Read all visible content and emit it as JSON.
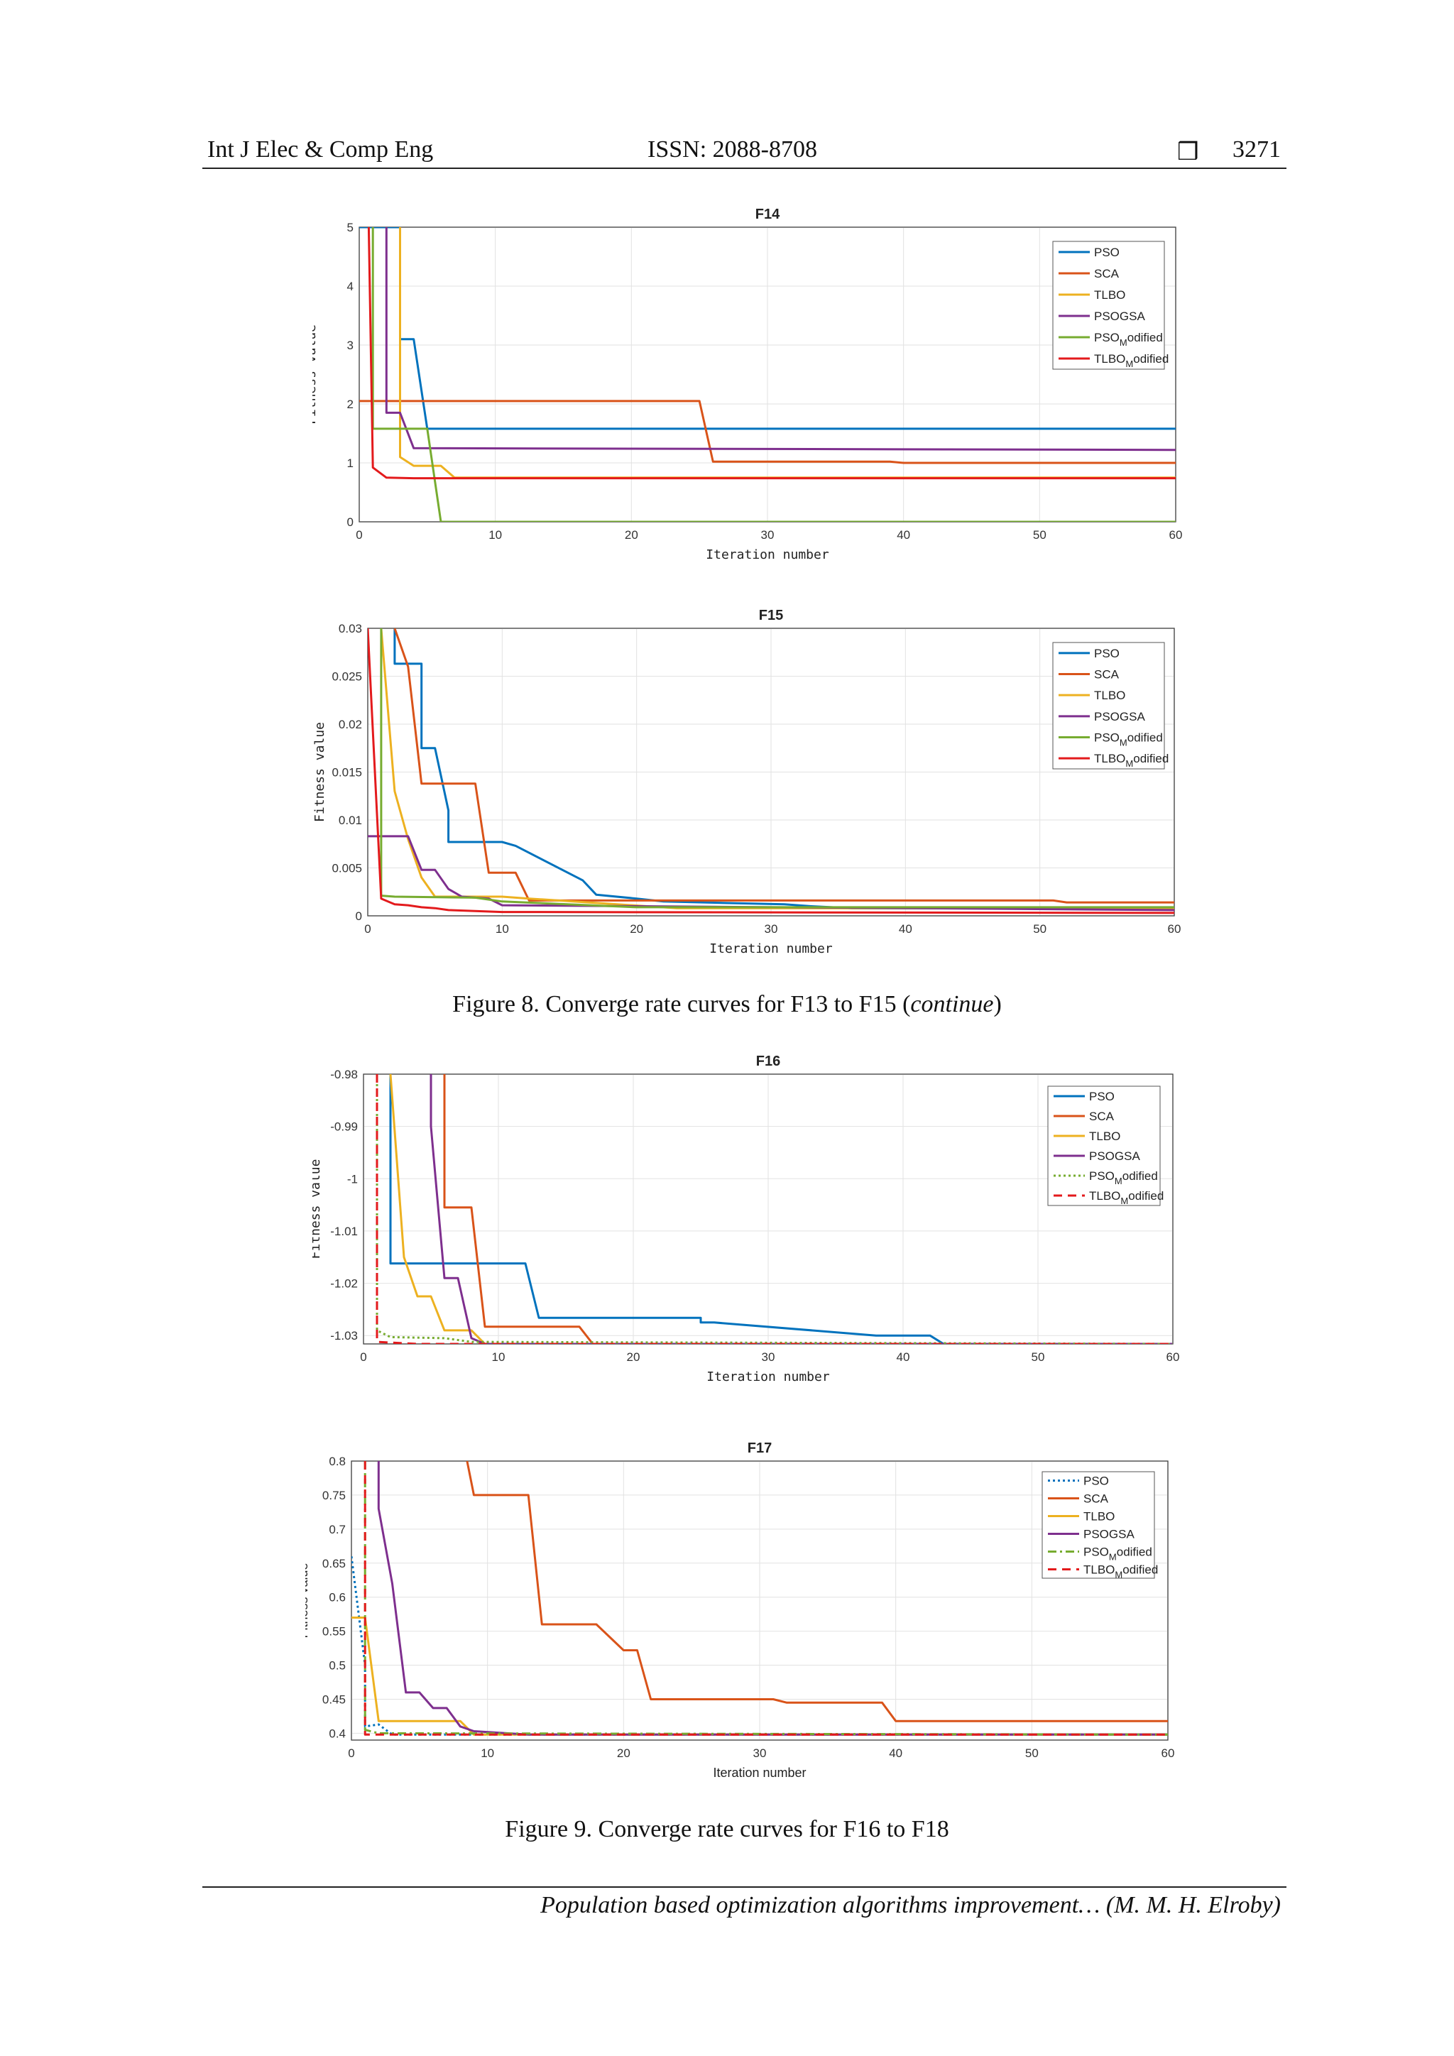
{
  "header": {
    "left": "Int J Elec & Comp Eng",
    "center": "ISSN: 2088-8708",
    "icon": "square-box-icon",
    "page": "3271"
  },
  "captions": {
    "fig8_prefix": "Figure 8. Converge rate curves for F13 to F15 (",
    "fig8_italic": "continue",
    "fig8_suffix": ")",
    "fig9": "Figure 9. Converge rate curves for F16 to F18"
  },
  "footer": "Population based optimization algorithms improvement… (M. M. H. Elroby)",
  "chart_data": [
    {
      "type": "line",
      "title": "F14",
      "xlabel": "Iteration number",
      "ylabel": "Fitness value",
      "xlim": [
        0,
        60
      ],
      "ylim": [
        0,
        5
      ],
      "xticks": [
        "0",
        "10",
        "20",
        "30",
        "40",
        "50",
        "60"
      ],
      "yticks": [
        "0",
        "1",
        "2",
        "3",
        "4",
        "5"
      ],
      "grid": true,
      "legend_position": "top-right",
      "series": [
        {
          "name": "PSO",
          "color": "#0072BD",
          "dash": "solid",
          "x": [
            0,
            3,
            3,
            4,
            5,
            60
          ],
          "y": [
            5,
            5,
            3.1,
            3.1,
            1.58,
            1.58
          ]
        },
        {
          "name": "SCA",
          "color": "#D95319",
          "dash": "solid",
          "x": [
            0,
            25,
            26,
            39,
            40,
            60
          ],
          "y": [
            2.05,
            2.05,
            1.02,
            1.02,
            1.0,
            1.0
          ]
        },
        {
          "name": "TLBO",
          "color": "#EDB120",
          "dash": "solid",
          "x": [
            3,
            3,
            4,
            6,
            7,
            60
          ],
          "y": [
            5,
            1.1,
            0.95,
            0.95,
            0.75,
            0.75
          ]
        },
        {
          "name": "PSOGSA",
          "color": "#7E2F8E",
          "dash": "solid",
          "x": [
            2,
            2,
            3,
            4,
            60
          ],
          "y": [
            5,
            1.85,
            1.85,
            1.25,
            1.22
          ]
        },
        {
          "name": "PSO_Modified",
          "color": "#77AC30",
          "dash": "solid",
          "x": [
            1,
            1,
            5,
            6,
            60
          ],
          "y": [
            5,
            1.58,
            1.58,
            0,
            0
          ]
        },
        {
          "name": "TLBO_Modified",
          "color": "#E31A1C",
          "dash": "solid",
          "x": [
            0.7,
            1,
            2,
            4,
            60
          ],
          "y": [
            5,
            0.92,
            0.75,
            0.74,
            0.74
          ]
        }
      ]
    },
    {
      "type": "line",
      "title": "F15",
      "xlabel": "Iteration number",
      "ylabel": "Fitness value",
      "xlim": [
        0,
        60
      ],
      "ylim": [
        0,
        0.03
      ],
      "xticks": [
        "0",
        "10",
        "20",
        "30",
        "40",
        "50",
        "60"
      ],
      "yticks": [
        "0",
        "0.005",
        "0.01",
        "0.015",
        "0.02",
        "0.025",
        "0.03"
      ],
      "grid": true,
      "legend_position": "top-right",
      "series": [
        {
          "name": "PSO",
          "color": "#0072BD",
          "dash": "solid",
          "x": [
            2,
            2,
            3,
            4,
            4,
            5,
            6,
            6,
            10,
            11,
            16,
            17,
            20,
            22,
            31,
            33,
            36,
            60
          ],
          "y": [
            0.03,
            0.0263,
            0.0263,
            0.0263,
            0.0175,
            0.0175,
            0.011,
            0.0077,
            0.0077,
            0.0073,
            0.0037,
            0.0022,
            0.0018,
            0.0015,
            0.0012,
            0.001,
            0.0008,
            0.0008
          ]
        },
        {
          "name": "SCA",
          "color": "#D95319",
          "dash": "solid",
          "x": [
            2,
            3,
            4,
            5,
            7,
            8,
            9,
            11,
            12,
            51,
            52,
            60
          ],
          "y": [
            0.03,
            0.026,
            0.0138,
            0.0138,
            0.0138,
            0.0138,
            0.0045,
            0.0045,
            0.0016,
            0.0016,
            0.0014,
            0.0014
          ]
        },
        {
          "name": "TLBO",
          "color": "#EDB120",
          "dash": "solid",
          "x": [
            1,
            2,
            3,
            4,
            5,
            10,
            12,
            23,
            60
          ],
          "y": [
            0.03,
            0.013,
            0.008,
            0.004,
            0.002,
            0.002,
            0.0018,
            0.0008,
            0.0008
          ]
        },
        {
          "name": "PSOGSA",
          "color": "#7E2F8E",
          "dash": "solid",
          "x": [
            0,
            3,
            4,
            5,
            6,
            7,
            9,
            10,
            60
          ],
          "y": [
            0.0083,
            0.0083,
            0.0048,
            0.0048,
            0.0028,
            0.002,
            0.0018,
            0.0011,
            0.0006
          ]
        },
        {
          "name": "PSO_Modified",
          "color": "#77AC30",
          "dash": "solid",
          "x": [
            1,
            1,
            2,
            8,
            10,
            20,
            60
          ],
          "y": [
            0.03,
            0.0021,
            0.002,
            0.0019,
            0.0015,
            0.0009,
            0.0009
          ]
        },
        {
          "name": "TLBO_Modified",
          "color": "#E31A1C",
          "dash": "solid",
          "x": [
            0,
            1,
            2,
            3,
            4,
            5,
            6,
            10,
            60
          ],
          "y": [
            0.03,
            0.0018,
            0.0012,
            0.0011,
            0.0009,
            0.0008,
            0.0006,
            0.0004,
            0.0003
          ]
        }
      ]
    },
    {
      "type": "line",
      "title": "F16",
      "xlabel": "Iteration number",
      "ylabel": "Fitness value",
      "xlim": [
        0,
        60
      ],
      "ylim": [
        -1.0316,
        -0.98
      ],
      "xticks": [
        "0",
        "10",
        "20",
        "30",
        "40",
        "50",
        "60"
      ],
      "yticks": [
        "-0.98",
        "-0.99",
        "-1",
        "-1.01",
        "-1.02",
        "-1.03"
      ],
      "ytick_values": [
        -0.98,
        -0.99,
        -1.0,
        -1.01,
        -1.02,
        -1.03
      ],
      "grid": true,
      "legend_position": "top-right",
      "series": [
        {
          "name": "PSO",
          "color": "#0072BD",
          "dash": "solid",
          "x": [
            2,
            2,
            12,
            13,
            23,
            25,
            25,
            26,
            38,
            40,
            42,
            43,
            60
          ],
          "y": [
            -0.98,
            -1.0162,
            -1.0162,
            -1.0266,
            -1.0266,
            -1.0266,
            -1.0275,
            -1.0275,
            -1.03,
            -1.03,
            -1.03,
            -1.0316,
            -1.0316
          ]
        },
        {
          "name": "SCA",
          "color": "#D95319",
          "dash": "solid",
          "x": [
            6,
            6,
            8,
            9,
            16,
            17,
            60
          ],
          "y": [
            -0.98,
            -1.0055,
            -1.0055,
            -1.0283,
            -1.0283,
            -1.0316,
            -1.0316
          ]
        },
        {
          "name": "TLBO",
          "color": "#EDB120",
          "dash": "solid",
          "x": [
            2,
            3,
            4,
            5,
            6,
            8,
            9,
            60
          ],
          "y": [
            -0.98,
            -1.015,
            -1.0225,
            -1.0225,
            -1.029,
            -1.029,
            -1.0316,
            -1.0316
          ]
        },
        {
          "name": "PSOGSA",
          "color": "#7E2F8E",
          "dash": "solid",
          "x": [
            5,
            5,
            6,
            7,
            8,
            9,
            60
          ],
          "y": [
            -0.98,
            -0.99,
            -1.019,
            -1.019,
            -1.0305,
            -1.0316,
            -1.0316
          ]
        },
        {
          "name": "PSO_Modified",
          "color": "#77AC30",
          "dash": "dotted",
          "x": [
            1,
            1,
            2,
            6,
            8,
            60
          ],
          "y": [
            -0.98,
            -1.029,
            -1.0303,
            -1.0305,
            -1.0312,
            -1.0316
          ]
        },
        {
          "name": "TLBO_Modified",
          "color": "#E31A1C",
          "dash": "dashed",
          "x": [
            1,
            1,
            4,
            8,
            60
          ],
          "y": [
            -0.98,
            -1.0312,
            -1.0316,
            -1.0316,
            -1.0316
          ]
        }
      ]
    },
    {
      "type": "line",
      "title": "F17",
      "xlabel": "Iteration number",
      "ylabel": "Fitness value",
      "xlim": [
        0,
        60
      ],
      "ylim": [
        0.39,
        0.8
      ],
      "xticks": [
        "0",
        "10",
        "20",
        "30",
        "40",
        "50",
        "60"
      ],
      "yticks": [
        "0.4",
        "0.45",
        "0.5",
        "0.55",
        "0.6",
        "0.65",
        "0.7",
        "0.75",
        "0.8"
      ],
      "ytick_values": [
        0.4,
        0.45,
        0.5,
        0.55,
        0.6,
        0.65,
        0.7,
        0.75,
        0.8
      ],
      "grid": true,
      "legend_position": "top-right",
      "series": [
        {
          "name": "PSO",
          "color": "#0072BD",
          "dash": "dotted",
          "x": [
            0,
            1,
            1,
            2,
            3,
            60
          ],
          "y": [
            0.66,
            0.5,
            0.41,
            0.413,
            0.398,
            0.398
          ]
        },
        {
          "name": "SCA",
          "color": "#D95319",
          "dash": "solid",
          "x": [
            8.5,
            9,
            13,
            14,
            18,
            20,
            21,
            22,
            31,
            32,
            39,
            40,
            60
          ],
          "y": [
            0.8,
            0.75,
            0.75,
            0.56,
            0.56,
            0.522,
            0.522,
            0.45,
            0.45,
            0.445,
            0.445,
            0.418,
            0.418
          ]
        },
        {
          "name": "TLBO",
          "color": "#EDB120",
          "dash": "solid",
          "x": [
            0,
            1,
            2,
            8,
            9,
            60
          ],
          "y": [
            0.57,
            0.57,
            0.418,
            0.418,
            0.398,
            0.398
          ]
        },
        {
          "name": "PSOGSA",
          "color": "#7E2F8E",
          "dash": "solid",
          "x": [
            2,
            2,
            3,
            4,
            5,
            6,
            7,
            8,
            9,
            13,
            60
          ],
          "y": [
            0.8,
            0.73,
            0.62,
            0.46,
            0.46,
            0.437,
            0.437,
            0.41,
            0.403,
            0.398,
            0.398
          ]
        },
        {
          "name": "PSO_Modified",
          "color": "#77AC30",
          "dash": "dashdot",
          "x": [
            1,
            1,
            2,
            60
          ],
          "y": [
            0.8,
            0.405,
            0.4,
            0.398
          ]
        },
        {
          "name": "TLBO_Modified",
          "color": "#E31A1C",
          "dash": "dashed",
          "x": [
            1,
            1,
            2,
            60
          ],
          "y": [
            0.8,
            0.398,
            0.398,
            0.398
          ]
        }
      ]
    }
  ]
}
